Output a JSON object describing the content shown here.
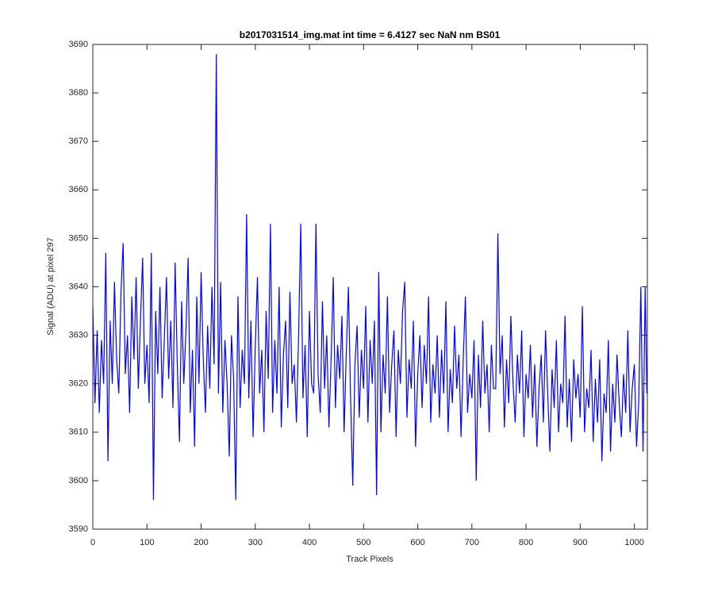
{
  "chart_data": {
    "type": "line",
    "title": "b2017031514_img.mat int time = 6.4127 sec  NaN nm BS01",
    "xlabel": "Track Pixels",
    "ylabel": "Signal (ADU) at pixel 297",
    "xlim": [
      0,
      1024
    ],
    "ylim": [
      3590,
      3690
    ],
    "xticks": [
      0,
      100,
      200,
      300,
      400,
      500,
      600,
      700,
      800,
      900,
      1000
    ],
    "yticks": [
      3590,
      3600,
      3610,
      3620,
      3630,
      3640,
      3650,
      3660,
      3670,
      3680,
      3690
    ],
    "grid": false,
    "x": [
      0,
      4,
      8,
      12,
      16,
      20,
      24,
      28,
      32,
      36,
      40,
      44,
      48,
      52,
      56,
      60,
      64,
      68,
      72,
      76,
      80,
      84,
      88,
      92,
      96,
      100,
      104,
      108,
      112,
      116,
      120,
      124,
      128,
      132,
      136,
      140,
      144,
      148,
      152,
      156,
      160,
      164,
      168,
      172,
      176,
      180,
      184,
      188,
      192,
      196,
      200,
      204,
      208,
      212,
      216,
      220,
      224,
      228,
      232,
      236,
      240,
      244,
      248,
      252,
      256,
      260,
      264,
      268,
      272,
      276,
      280,
      284,
      288,
      292,
      296,
      300,
      304,
      308,
      312,
      316,
      320,
      324,
      328,
      332,
      336,
      340,
      344,
      348,
      352,
      356,
      360,
      364,
      368,
      372,
      376,
      380,
      384,
      388,
      392,
      396,
      400,
      404,
      408,
      412,
      416,
      420,
      424,
      428,
      432,
      436,
      440,
      444,
      448,
      452,
      456,
      460,
      464,
      468,
      472,
      476,
      480,
      484,
      488,
      492,
      496,
      500,
      504,
      508,
      512,
      516,
      520,
      524,
      528,
      532,
      536,
      540,
      544,
      548,
      552,
      556,
      560,
      564,
      568,
      572,
      576,
      580,
      584,
      588,
      592,
      596,
      600,
      604,
      608,
      612,
      616,
      620,
      624,
      628,
      632,
      636,
      640,
      644,
      648,
      652,
      656,
      660,
      664,
      668,
      672,
      676,
      680,
      684,
      688,
      692,
      696,
      700,
      704,
      708,
      712,
      716,
      720,
      724,
      728,
      732,
      736,
      740,
      744,
      748,
      752,
      756,
      760,
      764,
      768,
      772,
      776,
      780,
      784,
      788,
      792,
      796,
      800,
      804,
      808,
      812,
      816,
      820,
      824,
      828,
      832,
      836,
      840,
      844,
      848,
      852,
      856,
      860,
      864,
      868,
      872,
      876,
      880,
      884,
      888,
      892,
      896,
      900,
      904,
      908,
      912,
      916,
      920,
      924,
      928,
      932,
      936,
      940,
      944,
      948,
      952,
      956,
      960,
      964,
      968,
      972,
      976,
      980,
      984,
      988,
      992,
      996,
      1000,
      1004,
      1008,
      1012,
      1016,
      1020,
      1023
    ],
    "series": [
      {
        "name": "signal",
        "color": "#0000ff",
        "values": [
          3636,
          3616,
          3631,
          3614,
          3629,
          3620,
          3647,
          3604,
          3633,
          3620,
          3641,
          3625,
          3618,
          3639,
          3649,
          3622,
          3630,
          3614,
          3638,
          3625,
          3642,
          3619,
          3633,
          3646,
          3620,
          3628,
          3616,
          3647,
          3596,
          3635,
          3622,
          3640,
          3617,
          3629,
          3642,
          3621,
          3633,
          3615,
          3645,
          3624,
          3608,
          3637,
          3620,
          3631,
          3646,
          3614,
          3627,
          3607,
          3638,
          3620,
          3643,
          3625,
          3614,
          3632,
          3619,
          3640,
          3624,
          3688,
          3618,
          3641,
          3614,
          3629,
          3620,
          3605,
          3630,
          3621,
          3596,
          3638,
          3615,
          3627,
          3620,
          3655,
          3617,
          3633,
          3609,
          3628,
          3642,
          3618,
          3627,
          3610,
          3635,
          3621,
          3653,
          3614,
          3629,
          3618,
          3640,
          3611,
          3626,
          3633,
          3615,
          3639,
          3620,
          3624,
          3612,
          3630,
          3653,
          3617,
          3628,
          3609,
          3635,
          3620,
          3618,
          3653,
          3622,
          3614,
          3637,
          3619,
          3630,
          3611,
          3625,
          3642,
          3615,
          3628,
          3621,
          3634,
          3610,
          3626,
          3640,
          3617,
          3599,
          3624,
          3632,
          3613,
          3627,
          3619,
          3636,
          3612,
          3629,
          3620,
          3633,
          3597,
          3643,
          3610,
          3626,
          3618,
          3638,
          3614,
          3624,
          3631,
          3609,
          3627,
          3620,
          3635,
          3641,
          3613,
          3625,
          3619,
          3633,
          3607,
          3622,
          3630,
          3615,
          3628,
          3620,
          3638,
          3612,
          3624,
          3618,
          3630,
          3613,
          3627,
          3618,
          3637,
          3610,
          3623,
          3616,
          3632,
          3619,
          3626,
          3609,
          3625,
          3638,
          3614,
          3622,
          3617,
          3629,
          3600,
          3626,
          3615,
          3633,
          3618,
          3624,
          3610,
          3628,
          3619,
          3619,
          3651,
          3622,
          3630,
          3611,
          3625,
          3616,
          3634,
          3620,
          3612,
          3626,
          3618,
          3631,
          3609,
          3622,
          3617,
          3628,
          3613,
          3624,
          3607,
          3619,
          3626,
          3612,
          3631,
          3618,
          3606,
          3623,
          3615,
          3629,
          3610,
          3620,
          3616,
          3634,
          3611,
          3621,
          3608,
          3625,
          3617,
          3622,
          3613,
          3636,
          3610,
          3619,
          3615,
          3627,
          3608,
          3621,
          3612,
          3625,
          3604,
          3618,
          3614,
          3629,
          3606,
          3620,
          3612,
          3626,
          3616,
          3609,
          3622,
          3614,
          3631,
          3610,
          3619,
          3624,
          3607,
          3616,
          3640,
          3606,
          3640,
          3618
        ]
      }
    ]
  }
}
